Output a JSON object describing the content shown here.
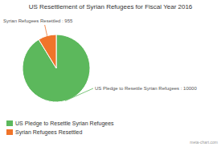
{
  "chart_data": {
    "type": "pie",
    "title": "US Resettlement of Syrian Refugees for Fiscal Year 2016",
    "categories": [
      "US Pledge to Resettle Syrian Refugees",
      "Syrian Refugees Resettled"
    ],
    "values": [
      10000,
      955
    ],
    "colors": [
      "#5cb85c",
      "#f0742a"
    ],
    "data_labels": true,
    "value_labels": [
      "US Pledge to Resettle Syrian Refugees : 10000",
      "Syrian Refugees Resettled : 955"
    ],
    "legend": "bottom",
    "annotations": [
      "meta-chart.com"
    ]
  }
}
